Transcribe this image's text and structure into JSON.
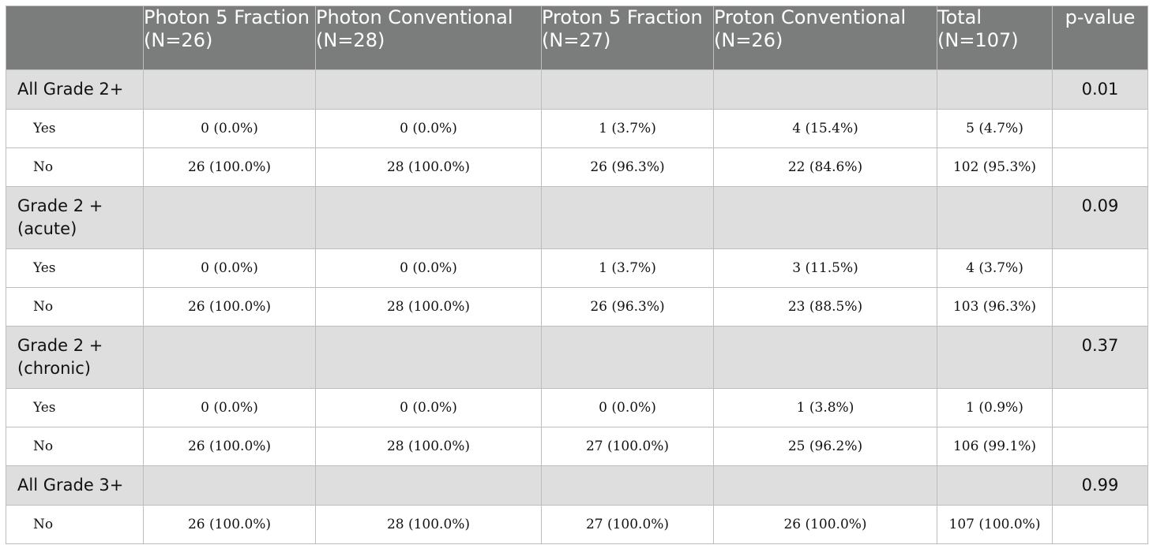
{
  "table": {
    "headers": [
      "",
      "Photon 5 Fraction (N=26)",
      "Photon Conventional (N=28)",
      "Proton 5 Fraction (N=27)",
      "Proton Conventional (N=26)",
      "Total (N=107)",
      "p-value"
    ],
    "groups": [
      {
        "label": "All Grade 2+",
        "p_value": "0.01",
        "rows": [
          {
            "label": "Yes",
            "cells": [
              "0 (0.0%)",
              "0 (0.0%)",
              "1 (3.7%)",
              "4 (15.4%)",
              "5 (4.7%)"
            ]
          },
          {
            "label": "No",
            "cells": [
              "26 (100.0%)",
              "28 (100.0%)",
              "26 (96.3%)",
              "22 (84.6%)",
              "102 (95.3%)"
            ]
          }
        ]
      },
      {
        "label": "Grade 2 + (acute)",
        "p_value": "0.09",
        "rows": [
          {
            "label": "Yes",
            "cells": [
              "0 (0.0%)",
              "0 (0.0%)",
              "1 (3.7%)",
              "3 (11.5%)",
              "4 (3.7%)"
            ]
          },
          {
            "label": "No",
            "cells": [
              "26 (100.0%)",
              "28 (100.0%)",
              "26 (96.3%)",
              "23 (88.5%)",
              "103 (96.3%)"
            ]
          }
        ]
      },
      {
        "label": "Grade 2 + (chronic)",
        "p_value": "0.37",
        "rows": [
          {
            "label": "Yes",
            "cells": [
              "0 (0.0%)",
              "0 (0.0%)",
              "0 (0.0%)",
              "1 (3.8%)",
              "1 (0.9%)"
            ]
          },
          {
            "label": "No",
            "cells": [
              "26 (100.0%)",
              "28 (100.0%)",
              "27 (100.0%)",
              "25 (96.2%)",
              "106 (99.1%)"
            ]
          }
        ]
      },
      {
        "label": "All Grade 3+",
        "p_value": "0.99",
        "rows": [
          {
            "label": "No",
            "cells": [
              "26 (100.0%)",
              "28 (100.0%)",
              "27 (100.0%)",
              "26 (100.0%)",
              "107 (100.0%)"
            ]
          }
        ]
      }
    ]
  }
}
